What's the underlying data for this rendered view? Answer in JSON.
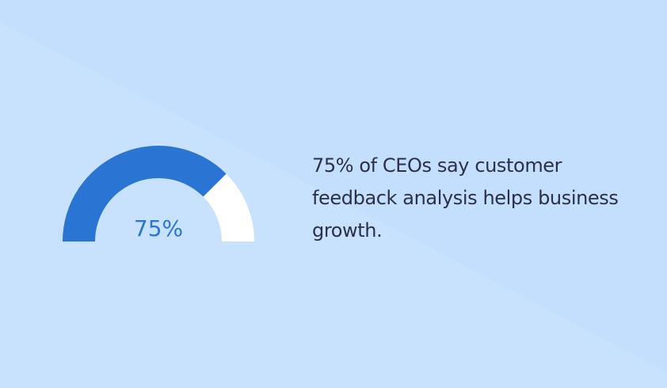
{
  "chart_data": {
    "type": "gauge",
    "values": [
      75
    ],
    "value_labels": [
      "75%"
    ],
    "ylim": [
      0,
      100
    ],
    "color": "#2a75d3",
    "track_color": "#ffffff",
    "annotation": "75% of CEOs say customer feedback analysis helps business growth."
  }
}
